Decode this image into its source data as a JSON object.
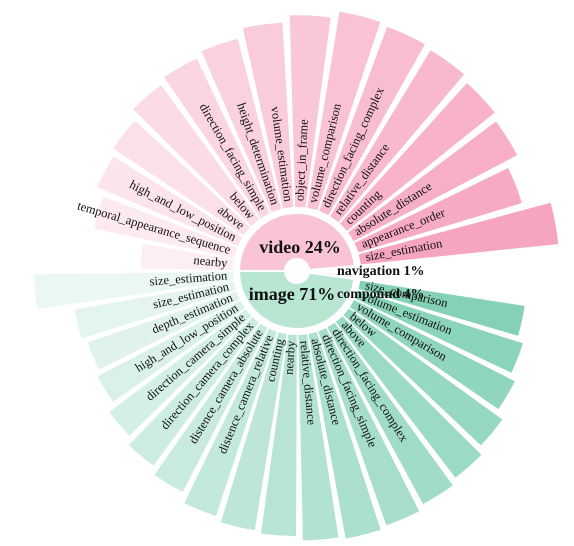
{
  "chart_data": {
    "type": "pie",
    "title": "",
    "groups": [
      {
        "name": "video",
        "pct_label": "24%",
        "percent": 24,
        "color": "#f48fb1",
        "items": [
          {
            "label": "nearby",
            "value": 0.4
          },
          {
            "label": "temporal_appearance_sequence",
            "value": 0.62
          },
          {
            "label": "high_and_low_position",
            "value": 0.66
          },
          {
            "label": "above",
            "value": 0.68
          },
          {
            "label": "below",
            "value": 0.72
          },
          {
            "label": "direction_facing_simple",
            "value": 0.74
          },
          {
            "label": "height_determination",
            "value": 0.76
          },
          {
            "label": "volume_estimation",
            "value": 0.8
          },
          {
            "label": "object_in_frame",
            "value": 0.83
          },
          {
            "label": "volume_comparison",
            "value": 0.86
          },
          {
            "label": "direction_facing_complex",
            "value": 0.85
          },
          {
            "label": "relative_distance",
            "value": 0.84
          },
          {
            "label": "counting",
            "value": 0.82
          },
          {
            "label": "absolute_distance",
            "value": 0.8
          },
          {
            "label": "appearance_order",
            "value": 0.74
          },
          {
            "label": "size_estimation",
            "value": 0.86
          }
        ]
      },
      {
        "name": "navigation",
        "pct_label": "1%",
        "percent": 1,
        "color": "#dddddd",
        "items": []
      },
      {
        "name": "compound",
        "pct_label": "4%",
        "percent": 4,
        "color": "#dddddd",
        "items": []
      },
      {
        "name": "image",
        "pct_label": "71%",
        "percent": 71,
        "color": "#66c6a4",
        "items": [
          {
            "label": "size_comparison",
            "value": 0.72
          },
          {
            "label": "volume_estimation",
            "value": 0.75
          },
          {
            "label": "volume_comparison",
            "value": 0.78
          },
          {
            "label": "below",
            "value": 0.82
          },
          {
            "label": "above",
            "value": 0.85
          },
          {
            "label": "direction_facing_complex",
            "value": 0.87
          },
          {
            "label": "direction_facing_simple",
            "value": 0.89
          },
          {
            "label": "absolute_distance",
            "value": 0.9
          },
          {
            "label": "relative_distance",
            "value": 0.89
          },
          {
            "label": "nearby",
            "value": 0.87
          },
          {
            "label": "counting",
            "value": 0.86
          },
          {
            "label": "distence_camera_relative",
            "value": 0.84
          },
          {
            "label": "distence_camera_absolute",
            "value": 0.8
          },
          {
            "label": "direction_camera_complex",
            "value": 0.77
          },
          {
            "label": "direction_camera_simple",
            "value": 0.74
          },
          {
            "label": "high_and_low_position",
            "value": 0.7
          },
          {
            "label": "depth_estimation",
            "value": 0.68
          },
          {
            "label": "size_estimation",
            "value": 0.7
          },
          {
            "label": "size_estimation",
            "value": 0.86
          }
        ]
      }
    ]
  }
}
